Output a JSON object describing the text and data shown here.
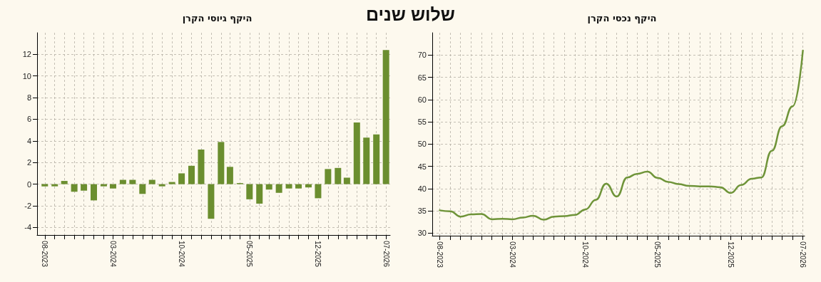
{
  "chart_data": [
    {
      "type": "line",
      "title": "היקף נכסי הקרן",
      "annotations": [
        "שלוש שנים"
      ],
      "x": [
        "2023-08",
        "2023-09",
        "2023-10",
        "2023-11",
        "2023-12",
        "2024-01",
        "2024-02",
        "2024-03",
        "2024-04",
        "2024-05",
        "2024-06",
        "2024-07",
        "2024-08",
        "2024-09",
        "2024-10",
        "2024-11",
        "2024-12",
        "2025-01",
        "2025-02",
        "2025-03",
        "2025-04",
        "2025-05",
        "2025-06",
        "2025-07",
        "2025-08",
        "2025-09",
        "2025-10",
        "2025-11",
        "2025-12",
        "2026-01",
        "2026-02",
        "2026-03",
        "2026-04",
        "2026-05",
        "2026-06",
        "2026-07"
      ],
      "series": [
        {
          "color": "#6f9439",
          "values": [
            35.1,
            34.9,
            33.7,
            34.2,
            34.3,
            33.1,
            33.2,
            33.1,
            33.5,
            33.9,
            33.0,
            33.7,
            33.8,
            34.1,
            35.3,
            37.5,
            41.1,
            38.2,
            42.5,
            43.3,
            43.8,
            42.4,
            41.5,
            41.0,
            40.6,
            40.5,
            40.5,
            40.3,
            39.0,
            40.8,
            42.2,
            42.5,
            48.5,
            54.0,
            58.5,
            71.0
          ]
        }
      ],
      "xlim": [
        "2023-07-10",
        "2026-07-06"
      ],
      "xticks": [
        {
          "value": "2023-08",
          "label": "08-2023"
        },
        {
          "value": "2023-09",
          "label": null
        },
        {
          "value": "2023-10",
          "label": null
        },
        {
          "value": "2023-11",
          "label": null
        },
        {
          "value": "2023-12",
          "label": null
        },
        {
          "value": "2024-01",
          "label": null
        },
        {
          "value": "2024-02",
          "label": null
        },
        {
          "value": "2024-03",
          "label": "03-2024"
        },
        {
          "value": "2024-04",
          "label": null
        },
        {
          "value": "2024-05",
          "label": null
        },
        {
          "value": "2024-06",
          "label": null
        },
        {
          "value": "2024-07",
          "label": null
        },
        {
          "value": "2024-08",
          "label": null
        },
        {
          "value": "2024-09",
          "label": null
        },
        {
          "value": "2024-10",
          "label": "10-2024"
        },
        {
          "value": "2024-11",
          "label": null
        },
        {
          "value": "2024-12",
          "label": null
        },
        {
          "value": "2025-01",
          "label": null
        },
        {
          "value": "2025-02",
          "label": null
        },
        {
          "value": "2025-03",
          "label": null
        },
        {
          "value": "2025-04",
          "label": null
        },
        {
          "value": "2025-05",
          "label": "05-2025"
        },
        {
          "value": "2025-06",
          "label": null
        },
        {
          "value": "2025-07",
          "label": null
        },
        {
          "value": "2025-08",
          "label": null
        },
        {
          "value": "2025-09",
          "label": null
        },
        {
          "value": "2025-10",
          "label": null
        },
        {
          "value": "2025-11",
          "label": null
        },
        {
          "value": "2025-12",
          "label": "12-2025"
        },
        {
          "value": "2026-01",
          "label": null
        },
        {
          "value": "2026-02",
          "label": null
        },
        {
          "value": "2026-03",
          "label": null
        },
        {
          "value": "2026-04",
          "label": null
        },
        {
          "value": "2026-05",
          "label": null
        },
        {
          "value": "2026-06",
          "label": null
        },
        {
          "value": "2026-07",
          "label": "07-2026"
        }
      ],
      "ylim": [
        29.4,
        75
      ],
      "yticks": [
        30,
        35,
        40,
        45,
        50,
        55,
        60,
        65,
        70
      ],
      "grid": true,
      "marker": "none",
      "line_style": "solid"
    },
    {
      "type": "bar",
      "title": "היקף גיוסי הקרן",
      "x": [
        "2023-08",
        "2023-09",
        "2023-10",
        "2023-11",
        "2023-12",
        "2024-01",
        "2024-02",
        "2024-03",
        "2024-04",
        "2024-05",
        "2024-06",
        "2024-07",
        "2024-08",
        "2024-09",
        "2024-10",
        "2024-11",
        "2024-12",
        "2025-01",
        "2025-02",
        "2025-03",
        "2025-04",
        "2025-05",
        "2025-06",
        "2025-07",
        "2025-08",
        "2025-09",
        "2025-10",
        "2025-11",
        "2025-12",
        "2026-01",
        "2026-02",
        "2026-03",
        "2026-04",
        "2026-05",
        "2026-06",
        "2026-07"
      ],
      "series": [
        {
          "color": "#6b8e2f",
          "values": [
            -0.2,
            -0.2,
            0.3,
            -0.7,
            -0.6,
            -1.5,
            -0.2,
            -0.4,
            0.4,
            0.4,
            -0.9,
            0.4,
            -0.2,
            0.2,
            1.0,
            1.7,
            3.2,
            -3.2,
            3.9,
            1.6,
            0.1,
            -1.4,
            -1.8,
            -0.5,
            -0.8,
            -0.4,
            -0.4,
            -0.3,
            -1.3,
            1.4,
            1.5,
            0.6,
            5.7,
            4.3,
            4.6,
            12.4
          ]
        }
      ],
      "xlim": [
        "2023-07-08",
        "2026-07-14"
      ],
      "xticks": [
        {
          "value": "2023-08",
          "label": "08-2023"
        },
        {
          "value": "2023-09",
          "label": null
        },
        {
          "value": "2023-10",
          "label": null
        },
        {
          "value": "2023-11",
          "label": null
        },
        {
          "value": "2023-12",
          "label": null
        },
        {
          "value": "2024-01",
          "label": null
        },
        {
          "value": "2024-02",
          "label": null
        },
        {
          "value": "2024-03",
          "label": "03-2024"
        },
        {
          "value": "2024-04",
          "label": null
        },
        {
          "value": "2024-05",
          "label": null
        },
        {
          "value": "2024-06",
          "label": null
        },
        {
          "value": "2024-07",
          "label": null
        },
        {
          "value": "2024-08",
          "label": null
        },
        {
          "value": "2024-09",
          "label": null
        },
        {
          "value": "2024-10",
          "label": "10-2024"
        },
        {
          "value": "2024-11",
          "label": null
        },
        {
          "value": "2024-12",
          "label": null
        },
        {
          "value": "2025-01",
          "label": null
        },
        {
          "value": "2025-02",
          "label": null
        },
        {
          "value": "2025-03",
          "label": null
        },
        {
          "value": "2025-04",
          "label": null
        },
        {
          "value": "2025-05",
          "label": "05-2025"
        },
        {
          "value": "2025-06",
          "label": null
        },
        {
          "value": "2025-07",
          "label": null
        },
        {
          "value": "2025-08",
          "label": null
        },
        {
          "value": "2025-09",
          "label": null
        },
        {
          "value": "2025-10",
          "label": null
        },
        {
          "value": "2025-11",
          "label": null
        },
        {
          "value": "2025-12",
          "label": "12-2025"
        },
        {
          "value": "2026-01",
          "label": null
        },
        {
          "value": "2026-02",
          "label": null
        },
        {
          "value": "2026-03",
          "label": null
        },
        {
          "value": "2026-04",
          "label": null
        },
        {
          "value": "2026-05",
          "label": null
        },
        {
          "value": "2026-06",
          "label": null
        },
        {
          "value": "2026-07",
          "label": "07-2026"
        }
      ],
      "ylim": [
        -4.7,
        14
      ],
      "yticks": [
        -4,
        -2,
        0,
        2,
        4,
        6,
        8,
        10,
        12
      ],
      "grid": true
    }
  ]
}
